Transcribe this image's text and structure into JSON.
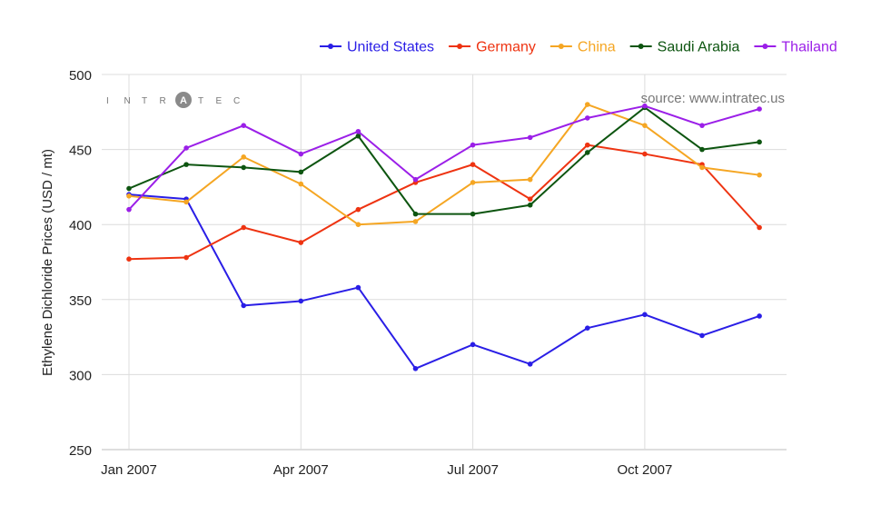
{
  "brand": {
    "logo_text": "INTRATEC",
    "source_text": "source: www.intratec.us"
  },
  "chart_data": {
    "type": "line",
    "title": "",
    "xlabel": "",
    "ylabel": "Ethylene Dichloride Prices (USD / mt)",
    "ylim": [
      250,
      500
    ],
    "yticks": [
      250,
      300,
      350,
      400,
      450,
      500
    ],
    "x_months": [
      "Jan 2007",
      "Feb 2007",
      "Mar 2007",
      "Apr 2007",
      "May 2007",
      "Jun 2007",
      "Jul 2007",
      "Aug 2007",
      "Sep 2007",
      "Oct 2007",
      "Nov 2007",
      "Dec 2007"
    ],
    "x_tick_labels": [
      {
        "index": 0,
        "label": "Jan 2007"
      },
      {
        "index": 3,
        "label": "Apr 2007"
      },
      {
        "index": 6,
        "label": "Jul 2007"
      },
      {
        "index": 9,
        "label": "Oct 2007"
      }
    ],
    "legend_position": "top-right",
    "grid": true,
    "series": [
      {
        "name": "United States",
        "color": "#2a1ee6",
        "values": [
          420,
          417,
          346,
          349,
          358,
          304,
          320,
          307,
          331,
          340,
          326,
          339
        ]
      },
      {
        "name": "Germany",
        "color": "#ee3311",
        "values": [
          377,
          378,
          398,
          388,
          410,
          428,
          440,
          417,
          453,
          447,
          440,
          398
        ]
      },
      {
        "name": "China",
        "color": "#f5a623",
        "values": [
          419,
          415,
          445,
          427,
          400,
          402,
          428,
          430,
          480,
          466,
          438,
          433
        ]
      },
      {
        "name": "Saudi Arabia",
        "color": "#0d5510",
        "values": [
          424,
          440,
          438,
          435,
          459,
          407,
          407,
          413,
          448,
          478,
          450,
          455
        ]
      },
      {
        "name": "Thailand",
        "color": "#9b1fe8",
        "values": [
          410,
          451,
          466,
          447,
          462,
          430,
          453,
          458,
          471,
          479,
          466,
          477
        ]
      }
    ]
  }
}
